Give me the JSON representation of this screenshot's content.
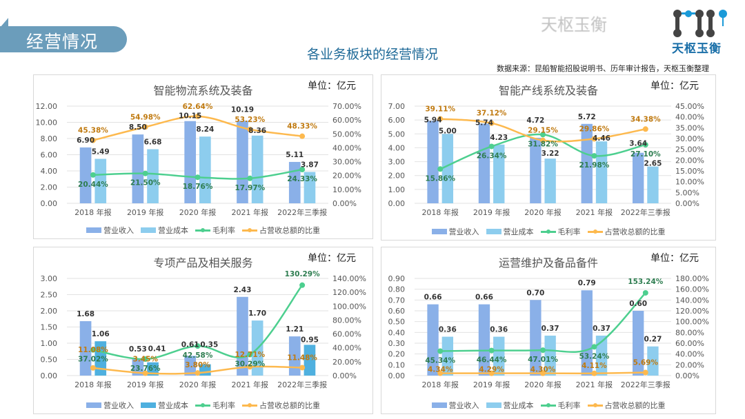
{
  "header": {
    "section_label": "经营情况",
    "title": "各业务板块的经营情况",
    "source": "数据来源：昆船智能招股说明书、历年审计报告，天枢玉衡整理",
    "logo_text": "天枢玉衡",
    "watermark": "天枢玉衡"
  },
  "colors": {
    "revenue": "#8ab0e8",
    "cost": "#8dcdee",
    "cost_alt": "#4fb0df",
    "margin": "#4dcf8f",
    "share": "#fdb94e",
    "margin_label": "#2e7d50",
    "share_label": "#c07a10"
  },
  "legend": [
    "营业收入",
    "营业成本",
    "毛利率",
    "占营收总额的比重"
  ],
  "chart_data": [
    {
      "type": "bar+line",
      "title": "智能物流系统及装备",
      "unit": "单位：亿元",
      "categories": [
        "2018 年报",
        "2019 年报",
        "2020 年报",
        "2021 年报",
        "2022年三季报"
      ],
      "series": [
        {
          "name": "营业收入",
          "type": "bar",
          "axis": "left",
          "values": [
            6.9,
            8.5,
            10.15,
            10.19,
            5.11
          ]
        },
        {
          "name": "营业成本",
          "type": "bar",
          "axis": "left",
          "values": [
            5.49,
            6.68,
            8.24,
            8.36,
            3.87
          ]
        },
        {
          "name": "毛利率",
          "type": "line",
          "axis": "right",
          "values": [
            20.44,
            21.5,
            18.76,
            17.97,
            24.33
          ]
        },
        {
          "name": "占营收总额的比重",
          "type": "line",
          "axis": "right",
          "values": [
            45.38,
            54.98,
            62.64,
            53.23,
            48.33
          ]
        }
      ],
      "ylim_left": [
        0,
        12
      ],
      "ystep_left": 2,
      "ylim_right": [
        0,
        70
      ],
      "ystep_right": 10,
      "grid": true,
      "legend_position": "bottom"
    },
    {
      "type": "bar+line",
      "title": "智能产线系统及装备",
      "unit": "单位：亿元",
      "categories": [
        "2018 年报",
        "2019 年报",
        "2020 年报",
        "2021 年报",
        "2022年三季报"
      ],
      "series": [
        {
          "name": "营业收入",
          "type": "bar",
          "axis": "left",
          "values": [
            5.94,
            5.74,
            4.72,
            5.72,
            3.64
          ]
        },
        {
          "name": "营业成本",
          "type": "bar",
          "axis": "left",
          "values": [
            5.0,
            4.23,
            3.22,
            4.46,
            2.65
          ]
        },
        {
          "name": "毛利率",
          "type": "line",
          "axis": "right",
          "values": [
            15.86,
            26.34,
            31.82,
            21.98,
            27.1
          ]
        },
        {
          "name": "占营收总额的比重",
          "type": "line",
          "axis": "right",
          "values": [
            39.11,
            37.12,
            29.15,
            29.86,
            34.38
          ]
        }
      ],
      "ylim_left": [
        0,
        7
      ],
      "ystep_left": 1,
      "ylim_right": [
        0,
        45
      ],
      "ystep_right": 5,
      "grid": true,
      "legend_position": "bottom"
    },
    {
      "type": "bar+line",
      "title": "专项产品及相关服务",
      "unit": "单位：亿元",
      "categories": [
        "2018 年报",
        "2019 年报",
        "2020 年报",
        "2021 年报",
        "2022年三季报"
      ],
      "series": [
        {
          "name": "营业收入",
          "type": "bar",
          "axis": "left",
          "values": [
            1.68,
            0.53,
            0.61,
            2.43,
            1.21
          ]
        },
        {
          "name": "营业成本",
          "type": "bar",
          "axis": "left",
          "values": [
            1.06,
            0.41,
            0.35,
            1.7,
            0.95
          ]
        },
        {
          "name": "毛利率",
          "type": "line",
          "axis": "right",
          "values": [
            37.02,
            23.76,
            42.58,
            30.29,
            130.29
          ]
        },
        {
          "name": "占营收总额的比重",
          "type": "line",
          "axis": "right",
          "values": [
            11.08,
            3.45,
            3.8,
            12.71,
            11.48
          ]
        }
      ],
      "ylim_left": [
        0,
        3
      ],
      "ystep_left": 0.5,
      "ylim_right": [
        0,
        140
      ],
      "ystep_right": 20,
      "grid": true,
      "legend_position": "bottom"
    },
    {
      "type": "bar+line",
      "title": "运营维护及备品备件",
      "unit": "单位：亿元",
      "categories": [
        "2018 年报",
        "2019 年报",
        "2020 年报",
        "2021 年报",
        "2022年三季报"
      ],
      "series": [
        {
          "name": "营业收入",
          "type": "bar",
          "axis": "left",
          "values": [
            0.66,
            0.66,
            0.7,
            0.79,
            0.6
          ]
        },
        {
          "name": "营业成本",
          "type": "bar",
          "axis": "left",
          "values": [
            0.36,
            0.36,
            0.37,
            0.37,
            0.27
          ]
        },
        {
          "name": "毛利率",
          "type": "line",
          "axis": "right",
          "values": [
            45.34,
            46.44,
            47.01,
            53.24,
            153.24
          ]
        },
        {
          "name": "占营收总额的比重",
          "type": "line",
          "axis": "right",
          "values": [
            4.34,
            4.29,
            4.3,
            4.11,
            5.69
          ]
        }
      ],
      "ylim_left": [
        0,
        0.9
      ],
      "ystep_left": 0.1,
      "ylim_right": [
        0,
        180
      ],
      "ystep_right": 20,
      "grid": true,
      "legend_position": "bottom"
    }
  ]
}
